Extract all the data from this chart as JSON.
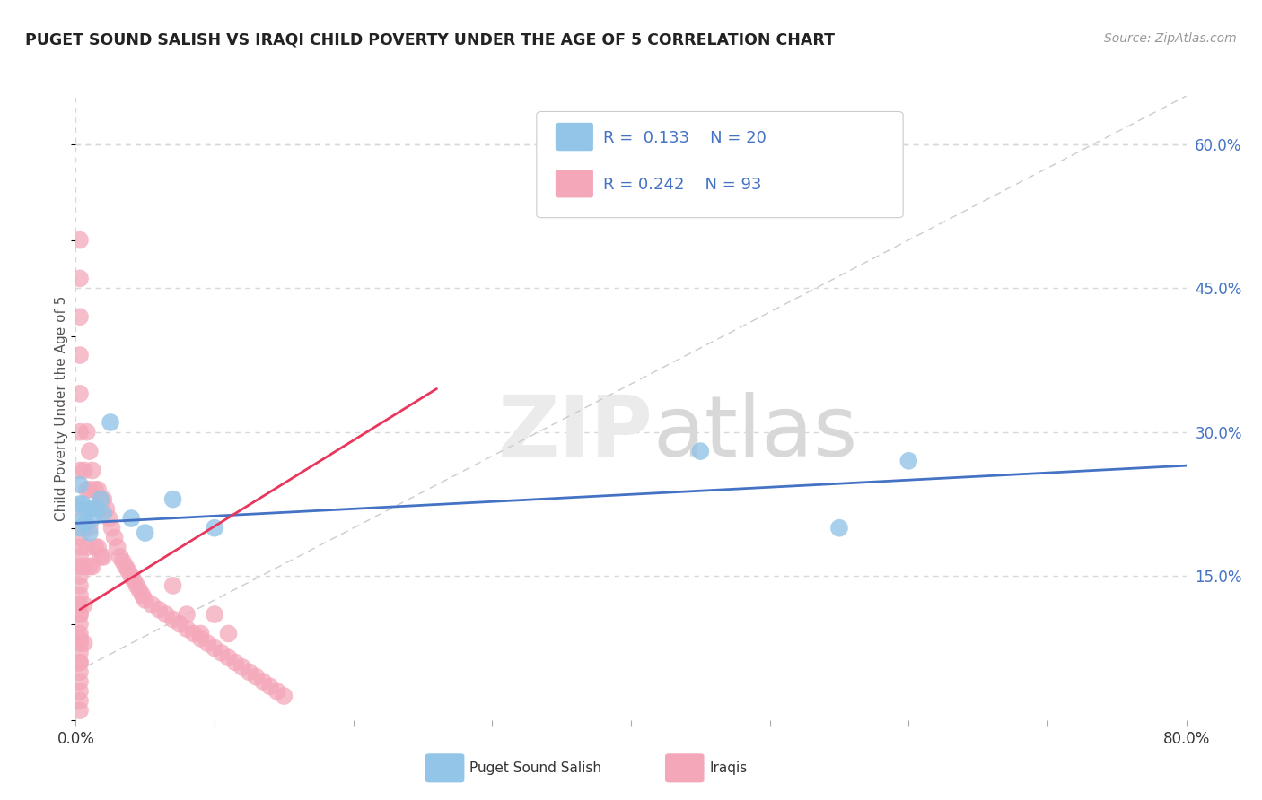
{
  "title": "PUGET SOUND SALISH VS IRAQI CHILD POVERTY UNDER THE AGE OF 5 CORRELATION CHART",
  "source": "Source: ZipAtlas.com",
  "xlabel_salish": "Puget Sound Salish",
  "xlabel_iraqis": "Iraqis",
  "ylabel": "Child Poverty Under the Age of 5",
  "xlim": [
    0.0,
    0.8
  ],
  "ylim": [
    0.0,
    0.65
  ],
  "yticks_right": [
    0.15,
    0.3,
    0.45,
    0.6
  ],
  "ytick_labels_right": [
    "15.0%",
    "30.0%",
    "45.0%",
    "60.0%"
  ],
  "salish_color": "#92C5E8",
  "iraqis_color": "#F4A7B9",
  "salish_line_color": "#4472C4",
  "iraqis_line_color": "#E8365D",
  "background_color": "#ffffff",
  "grid_color": "#d8d8d8",
  "salish_scatter_x": [
    0.003,
    0.003,
    0.003,
    0.005,
    0.005,
    0.007,
    0.008,
    0.01,
    0.012,
    0.015,
    0.018,
    0.02,
    0.025,
    0.04,
    0.05,
    0.07,
    0.1,
    0.45,
    0.55,
    0.6
  ],
  "salish_scatter_y": [
    0.2,
    0.225,
    0.245,
    0.225,
    0.21,
    0.205,
    0.22,
    0.195,
    0.21,
    0.22,
    0.23,
    0.215,
    0.31,
    0.21,
    0.195,
    0.23,
    0.2,
    0.28,
    0.2,
    0.27
  ],
  "iraqis_scatter_x": [
    0.003,
    0.003,
    0.003,
    0.003,
    0.003,
    0.003,
    0.003,
    0.003,
    0.003,
    0.003,
    0.003,
    0.003,
    0.003,
    0.003,
    0.003,
    0.003,
    0.003,
    0.003,
    0.003,
    0.003,
    0.003,
    0.003,
    0.003,
    0.003,
    0.003,
    0.003,
    0.003,
    0.003,
    0.003,
    0.003,
    0.006,
    0.006,
    0.006,
    0.006,
    0.006,
    0.008,
    0.008,
    0.008,
    0.01,
    0.01,
    0.01,
    0.01,
    0.012,
    0.012,
    0.012,
    0.014,
    0.014,
    0.016,
    0.016,
    0.018,
    0.018,
    0.02,
    0.02,
    0.022,
    0.024,
    0.026,
    0.028,
    0.03,
    0.032,
    0.034,
    0.036,
    0.038,
    0.04,
    0.042,
    0.044,
    0.046,
    0.048,
    0.05,
    0.055,
    0.06,
    0.065,
    0.07,
    0.075,
    0.08,
    0.085,
    0.09,
    0.095,
    0.1,
    0.105,
    0.11,
    0.115,
    0.12,
    0.125,
    0.13,
    0.135,
    0.14,
    0.145,
    0.15,
    0.07,
    0.08,
    0.09,
    0.1,
    0.11
  ],
  "iraqis_scatter_y": [
    0.5,
    0.46,
    0.42,
    0.38,
    0.34,
    0.3,
    0.26,
    0.22,
    0.18,
    0.15,
    0.13,
    0.11,
    0.09,
    0.08,
    0.07,
    0.06,
    0.05,
    0.04,
    0.03,
    0.02,
    0.01,
    0.19,
    0.17,
    0.16,
    0.14,
    0.12,
    0.11,
    0.1,
    0.085,
    0.06,
    0.26,
    0.2,
    0.16,
    0.12,
    0.08,
    0.3,
    0.24,
    0.18,
    0.28,
    0.24,
    0.2,
    0.16,
    0.26,
    0.22,
    0.16,
    0.24,
    0.18,
    0.24,
    0.18,
    0.23,
    0.17,
    0.23,
    0.17,
    0.22,
    0.21,
    0.2,
    0.19,
    0.18,
    0.17,
    0.165,
    0.16,
    0.155,
    0.15,
    0.145,
    0.14,
    0.135,
    0.13,
    0.125,
    0.12,
    0.115,
    0.11,
    0.105,
    0.1,
    0.095,
    0.09,
    0.085,
    0.08,
    0.075,
    0.07,
    0.065,
    0.06,
    0.055,
    0.05,
    0.045,
    0.04,
    0.035,
    0.03,
    0.025,
    0.14,
    0.11,
    0.09,
    0.11,
    0.09
  ],
  "salish_trend_x": [
    0.0,
    0.8
  ],
  "salish_trend_y": [
    0.205,
    0.265
  ],
  "iraqis_trend_x": [
    0.003,
    0.26
  ],
  "iraqis_trend_y": [
    0.115,
    0.345
  ]
}
